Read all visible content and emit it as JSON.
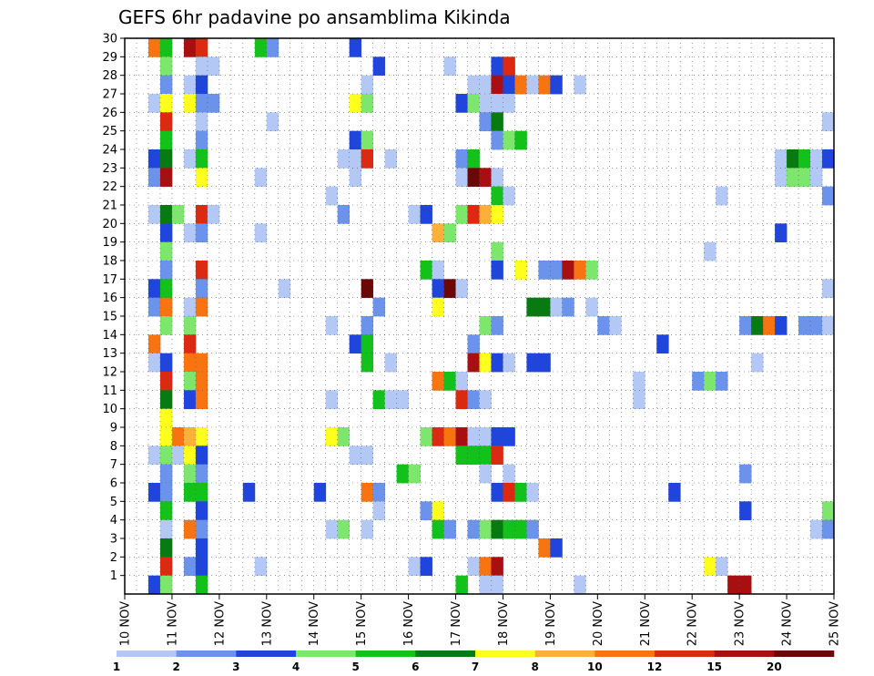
{
  "chart_data": {
    "type": "heatmap",
    "title": "GEFS 6hr padavine po ansamblima Kikinda",
    "xlabel": "",
    "ylabel": "",
    "x_ticks": [
      "10 NOV",
      "11 NOV",
      "12 NOV",
      "13 NOV",
      "14 NOV",
      "15 NOV",
      "16 NOV",
      "17 NOV",
      "18 NOV",
      "19 NOV",
      "20 NOV",
      "21 NOV",
      "22 NOV",
      "23 NOV",
      "24 NOV",
      "25 NOV"
    ],
    "y_ticks": [
      1,
      2,
      3,
      4,
      5,
      6,
      7,
      8,
      9,
      10,
      11,
      12,
      13,
      14,
      15,
      16,
      17,
      18,
      19,
      20,
      21,
      22,
      23,
      24,
      25,
      26,
      27,
      28,
      29,
      30
    ],
    "xlim": [
      0,
      60
    ],
    "ylim": [
      0,
      30
    ],
    "grid": true,
    "legend_position": "bottom",
    "colorbar": {
      "labels": [
        "1",
        "2",
        "3",
        "4",
        "5",
        "6",
        "7",
        "8",
        "10",
        "12",
        "15",
        "20"
      ],
      "colors": [
        "#b3c8f5",
        "#6b93ec",
        "#1f45dc",
        "#7de66d",
        "#12c21a",
        "#087a12",
        "#ffff1e",
        "#fbb03b",
        "#f77410",
        "#dc2a12",
        "#a80f10",
        "#6a0808"
      ]
    },
    "cells_note_level_index": "each cell is [time step, ensemble member, class index into colorbar]",
    "cells": [
      [
        2,
        30,
        8
      ],
      [
        3,
        30,
        4
      ],
      [
        5,
        30,
        10
      ],
      [
        6,
        30,
        9
      ],
      [
        11,
        30,
        4
      ],
      [
        12,
        30,
        1
      ],
      [
        19,
        30,
        2
      ],
      [
        3,
        29,
        3
      ],
      [
        6,
        29,
        0
      ],
      [
        7,
        29,
        0
      ],
      [
        21,
        29,
        2
      ],
      [
        27,
        29,
        0
      ],
      [
        31,
        29,
        2
      ],
      [
        32,
        29,
        9
      ],
      [
        3,
        28,
        1
      ],
      [
        5,
        28,
        0
      ],
      [
        6,
        28,
        2
      ],
      [
        20,
        28,
        0
      ],
      [
        29,
        28,
        0
      ],
      [
        30,
        28,
        0
      ],
      [
        31,
        28,
        10
      ],
      [
        32,
        28,
        2
      ],
      [
        33,
        28,
        8
      ],
      [
        34,
        28,
        0
      ],
      [
        35,
        28,
        8
      ],
      [
        36,
        28,
        2
      ],
      [
        38,
        28,
        0
      ],
      [
        2,
        27,
        0
      ],
      [
        3,
        27,
        6
      ],
      [
        5,
        27,
        6
      ],
      [
        6,
        27,
        1
      ],
      [
        7,
        27,
        1
      ],
      [
        19,
        27,
        6
      ],
      [
        20,
        27,
        3
      ],
      [
        28,
        27,
        2
      ],
      [
        29,
        27,
        3
      ],
      [
        30,
        27,
        0
      ],
      [
        31,
        27,
        0
      ],
      [
        32,
        27,
        0
      ],
      [
        3,
        26,
        9
      ],
      [
        6,
        26,
        0
      ],
      [
        12,
        26,
        0
      ],
      [
        30,
        26,
        1
      ],
      [
        31,
        26,
        5
      ],
      [
        59,
        26,
        0
      ],
      [
        3,
        25,
        4
      ],
      [
        6,
        25,
        1
      ],
      [
        19,
        25,
        2
      ],
      [
        20,
        25,
        3
      ],
      [
        31,
        25,
        1
      ],
      [
        32,
        25,
        3
      ],
      [
        33,
        25,
        4
      ],
      [
        2,
        24,
        2
      ],
      [
        3,
        24,
        5
      ],
      [
        5,
        24,
        0
      ],
      [
        6,
        24,
        4
      ],
      [
        18,
        24,
        0
      ],
      [
        19,
        24,
        0
      ],
      [
        20,
        24,
        9
      ],
      [
        22,
        24,
        0
      ],
      [
        28,
        24,
        1
      ],
      [
        29,
        24,
        4
      ],
      [
        55,
        24,
        0
      ],
      [
        56,
        24,
        5
      ],
      [
        57,
        24,
        4
      ],
      [
        58,
        24,
        0
      ],
      [
        59,
        24,
        2
      ],
      [
        2,
        23,
        1
      ],
      [
        3,
        23,
        10
      ],
      [
        6,
        23,
        6
      ],
      [
        11,
        23,
        0
      ],
      [
        19,
        23,
        0
      ],
      [
        28,
        23,
        0
      ],
      [
        29,
        23,
        11
      ],
      [
        30,
        23,
        10
      ],
      [
        31,
        23,
        0
      ],
      [
        55,
        23,
        0
      ],
      [
        56,
        23,
        3
      ],
      [
        57,
        23,
        3
      ],
      [
        58,
        23,
        0
      ],
      [
        17,
        22,
        0
      ],
      [
        31,
        22,
        4
      ],
      [
        32,
        22,
        0
      ],
      [
        50,
        22,
        0
      ],
      [
        59,
        22,
        1
      ],
      [
        2,
        21,
        0
      ],
      [
        3,
        21,
        5
      ],
      [
        4,
        21,
        3
      ],
      [
        6,
        21,
        9
      ],
      [
        7,
        21,
        0
      ],
      [
        18,
        21,
        1
      ],
      [
        24,
        21,
        0
      ],
      [
        25,
        21,
        2
      ],
      [
        28,
        21,
        3
      ],
      [
        29,
        21,
        9
      ],
      [
        30,
        21,
        7
      ],
      [
        31,
        21,
        6
      ],
      [
        3,
        20,
        2
      ],
      [
        5,
        20,
        0
      ],
      [
        6,
        20,
        1
      ],
      [
        11,
        20,
        0
      ],
      [
        26,
        20,
        7
      ],
      [
        27,
        20,
        3
      ],
      [
        55,
        20,
        2
      ],
      [
        3,
        19,
        3
      ],
      [
        31,
        19,
        3
      ],
      [
        49,
        19,
        0
      ],
      [
        3,
        18,
        1
      ],
      [
        6,
        18,
        9
      ],
      [
        25,
        18,
        4
      ],
      [
        26,
        18,
        0
      ],
      [
        31,
        18,
        2
      ],
      [
        33,
        18,
        6
      ],
      [
        35,
        18,
        1
      ],
      [
        36,
        18,
        1
      ],
      [
        37,
        18,
        10
      ],
      [
        38,
        18,
        8
      ],
      [
        39,
        18,
        3
      ],
      [
        2,
        17,
        2
      ],
      [
        3,
        17,
        4
      ],
      [
        6,
        17,
        1
      ],
      [
        13,
        17,
        0
      ],
      [
        20,
        17,
        11
      ],
      [
        26,
        17,
        2
      ],
      [
        27,
        17,
        11
      ],
      [
        28,
        17,
        0
      ],
      [
        59,
        17,
        0
      ],
      [
        2,
        16,
        1
      ],
      [
        3,
        16,
        8
      ],
      [
        5,
        16,
        0
      ],
      [
        6,
        16,
        8
      ],
      [
        21,
        16,
        1
      ],
      [
        26,
        16,
        6
      ],
      [
        34,
        16,
        5
      ],
      [
        35,
        16,
        5
      ],
      [
        36,
        16,
        0
      ],
      [
        37,
        16,
        1
      ],
      [
        39,
        16,
        0
      ],
      [
        3,
        15,
        3
      ],
      [
        5,
        15,
        3
      ],
      [
        17,
        15,
        0
      ],
      [
        20,
        15,
        1
      ],
      [
        30,
        15,
        3
      ],
      [
        31,
        15,
        1
      ],
      [
        40,
        15,
        1
      ],
      [
        41,
        15,
        0
      ],
      [
        52,
        15,
        1
      ],
      [
        53,
        15,
        5
      ],
      [
        54,
        15,
        8
      ],
      [
        55,
        15,
        2
      ],
      [
        57,
        15,
        1
      ],
      [
        58,
        15,
        1
      ],
      [
        59,
        15,
        0
      ],
      [
        2,
        14,
        8
      ],
      [
        5,
        14,
        9
      ],
      [
        19,
        14,
        2
      ],
      [
        20,
        14,
        4
      ],
      [
        29,
        14,
        1
      ],
      [
        45,
        14,
        2
      ],
      [
        2,
        13,
        0
      ],
      [
        3,
        13,
        2
      ],
      [
        5,
        13,
        8
      ],
      [
        6,
        13,
        8
      ],
      [
        20,
        13,
        4
      ],
      [
        22,
        13,
        0
      ],
      [
        29,
        13,
        10
      ],
      [
        30,
        13,
        6
      ],
      [
        31,
        13,
        2
      ],
      [
        32,
        13,
        0
      ],
      [
        34,
        13,
        2
      ],
      [
        35,
        13,
        2
      ],
      [
        53,
        13,
        0
      ],
      [
        3,
        12,
        9
      ],
      [
        5,
        12,
        3
      ],
      [
        6,
        12,
        8
      ],
      [
        26,
        12,
        8
      ],
      [
        27,
        12,
        4
      ],
      [
        28,
        12,
        0
      ],
      [
        43,
        12,
        0
      ],
      [
        48,
        12,
        1
      ],
      [
        49,
        12,
        3
      ],
      [
        50,
        12,
        1
      ],
      [
        3,
        11,
        5
      ],
      [
        5,
        11,
        2
      ],
      [
        6,
        11,
        8
      ],
      [
        17,
        11,
        0
      ],
      [
        21,
        11,
        4
      ],
      [
        22,
        11,
        0
      ],
      [
        23,
        11,
        0
      ],
      [
        28,
        11,
        9
      ],
      [
        29,
        11,
        1
      ],
      [
        30,
        11,
        0
      ],
      [
        43,
        11,
        0
      ],
      [
        3,
        10,
        6
      ],
      [
        3,
        9,
        6
      ],
      [
        4,
        9,
        8
      ],
      [
        5,
        9,
        7
      ],
      [
        6,
        9,
        6
      ],
      [
        17,
        9,
        6
      ],
      [
        18,
        9,
        3
      ],
      [
        25,
        9,
        3
      ],
      [
        26,
        9,
        9
      ],
      [
        27,
        9,
        8
      ],
      [
        28,
        9,
        10
      ],
      [
        29,
        9,
        0
      ],
      [
        30,
        9,
        0
      ],
      [
        31,
        9,
        2
      ],
      [
        32,
        9,
        2
      ],
      [
        2,
        8,
        0
      ],
      [
        3,
        8,
        3
      ],
      [
        4,
        8,
        0
      ],
      [
        5,
        8,
        6
      ],
      [
        6,
        8,
        2
      ],
      [
        19,
        8,
        0
      ],
      [
        20,
        8,
        0
      ],
      [
        28,
        8,
        4
      ],
      [
        29,
        8,
        4
      ],
      [
        30,
        8,
        4
      ],
      [
        31,
        8,
        9
      ],
      [
        3,
        7,
        1
      ],
      [
        5,
        7,
        3
      ],
      [
        6,
        7,
        1
      ],
      [
        23,
        7,
        4
      ],
      [
        24,
        7,
        3
      ],
      [
        30,
        7,
        0
      ],
      [
        32,
        7,
        0
      ],
      [
        52,
        7,
        1
      ],
      [
        2,
        6,
        2
      ],
      [
        3,
        6,
        1
      ],
      [
        5,
        6,
        4
      ],
      [
        6,
        6,
        4
      ],
      [
        10,
        6,
        2
      ],
      [
        16,
        6,
        2
      ],
      [
        20,
        6,
        8
      ],
      [
        21,
        6,
        1
      ],
      [
        31,
        6,
        2
      ],
      [
        32,
        6,
        9
      ],
      [
        33,
        6,
        4
      ],
      [
        34,
        6,
        0
      ],
      [
        46,
        6,
        2
      ],
      [
        3,
        5,
        4
      ],
      [
        6,
        5,
        2
      ],
      [
        21,
        5,
        0
      ],
      [
        25,
        5,
        1
      ],
      [
        26,
        5,
        6
      ],
      [
        52,
        5,
        2
      ],
      [
        59,
        5,
        3
      ],
      [
        3,
        4,
        0
      ],
      [
        5,
        4,
        8
      ],
      [
        6,
        4,
        1
      ],
      [
        17,
        4,
        0
      ],
      [
        18,
        4,
        3
      ],
      [
        20,
        4,
        0
      ],
      [
        26,
        4,
        4
      ],
      [
        27,
        4,
        1
      ],
      [
        29,
        4,
        1
      ],
      [
        30,
        4,
        3
      ],
      [
        31,
        4,
        5
      ],
      [
        32,
        4,
        4
      ],
      [
        33,
        4,
        4
      ],
      [
        34,
        4,
        1
      ],
      [
        58,
        4,
        0
      ],
      [
        59,
        4,
        1
      ],
      [
        3,
        3,
        5
      ],
      [
        6,
        3,
        2
      ],
      [
        35,
        3,
        8
      ],
      [
        36,
        3,
        2
      ],
      [
        3,
        2,
        9
      ],
      [
        5,
        2,
        1
      ],
      [
        6,
        2,
        2
      ],
      [
        11,
        2,
        0
      ],
      [
        24,
        2,
        0
      ],
      [
        25,
        2,
        2
      ],
      [
        29,
        2,
        0
      ],
      [
        30,
        2,
        8
      ],
      [
        31,
        2,
        10
      ],
      [
        49,
        2,
        6
      ],
      [
        50,
        2,
        0
      ],
      [
        2,
        1,
        2
      ],
      [
        3,
        1,
        3
      ],
      [
        6,
        1,
        4
      ],
      [
        28,
        1,
        4
      ],
      [
        30,
        1,
        0
      ],
      [
        31,
        1,
        0
      ],
      [
        38,
        1,
        0
      ],
      [
        51,
        1,
        10
      ],
      [
        52,
        1,
        10
      ]
    ]
  }
}
